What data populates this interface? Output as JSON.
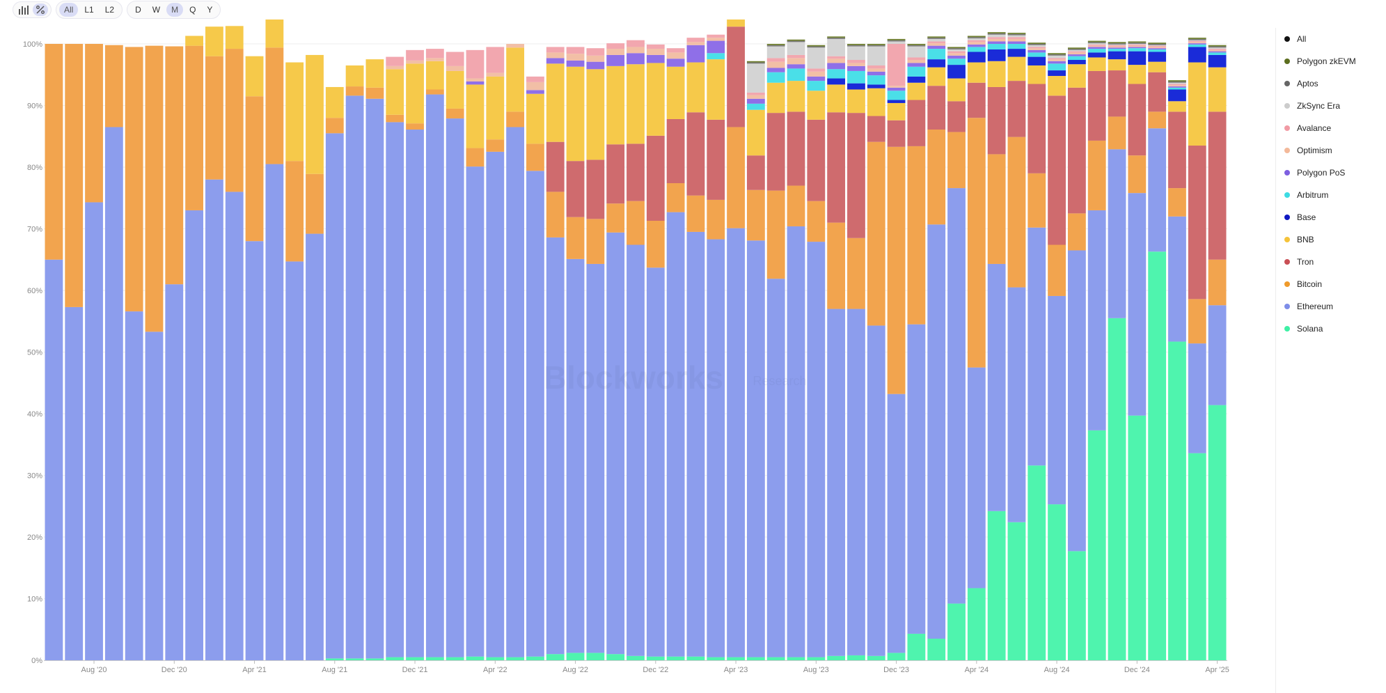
{
  "toolbar": {
    "scope": [
      "All",
      "L1",
      "L2"
    ],
    "scope_active": "All",
    "intervals": [
      "D",
      "W",
      "M",
      "Q",
      "Y"
    ],
    "interval_active": "M"
  },
  "legend": [
    {
      "name": "All",
      "color": "#111111"
    },
    {
      "name": "Polygon zkEVM",
      "color": "#5c6e1f"
    },
    {
      "name": "Aptos",
      "color": "#666666"
    },
    {
      "name": "ZkSync Era",
      "color": "#cccccc"
    },
    {
      "name": "Avalance",
      "color": "#f19aa4"
    },
    {
      "name": "Optimism",
      "color": "#f3b99a"
    },
    {
      "name": "Polygon PoS",
      "color": "#7d5fe0"
    },
    {
      "name": "Arbitrum",
      "color": "#3ddbe3"
    },
    {
      "name": "Base",
      "color": "#0f18c2"
    },
    {
      "name": "BNB",
      "color": "#f5c33a"
    },
    {
      "name": "Tron",
      "color": "#c94f55"
    },
    {
      "name": "Bitcoin",
      "color": "#ef9a2b"
    },
    {
      "name": "Ethereum",
      "color": "#7e8de8"
    },
    {
      "name": "Solana",
      "color": "#3ef0a5"
    }
  ],
  "watermark": {
    "brand": "Blockworks",
    "sub": "Research"
  },
  "chart_data": {
    "type": "bar",
    "stacked": true,
    "normalized": true,
    "interval": "monthly",
    "x": [
      "2020-06",
      "2020-07",
      "2020-08",
      "2020-09",
      "2020-10",
      "2020-11",
      "2020-12",
      "2021-01",
      "2021-02",
      "2021-03",
      "2021-04",
      "2021-05",
      "2021-06",
      "2021-07",
      "2021-08",
      "2021-09",
      "2021-10",
      "2021-11",
      "2021-12",
      "2022-01",
      "2022-02",
      "2022-03",
      "2022-04",
      "2022-05",
      "2022-06",
      "2022-07",
      "2022-08",
      "2022-09",
      "2022-10",
      "2022-11",
      "2022-12",
      "2023-01",
      "2023-02",
      "2023-03",
      "2023-04",
      "2023-05",
      "2023-06",
      "2023-07",
      "2023-08",
      "2023-09",
      "2023-10",
      "2023-11",
      "2023-12",
      "2024-01",
      "2024-02",
      "2024-03",
      "2024-04",
      "2024-05",
      "2024-06",
      "2024-07",
      "2024-08",
      "2024-09",
      "2024-10",
      "2024-11",
      "2024-12",
      "2025-01",
      "2025-02",
      "2025-03",
      "2025-04"
    ],
    "x_tick_labels": [
      "Aug '20",
      "Dec '20",
      "Apr '21",
      "Aug '21",
      "Dec '21",
      "Apr '22",
      "Aug '22",
      "Dec '22",
      "Apr '23",
      "Aug '23",
      "Dec '23",
      "Apr '24",
      "Aug '24",
      "Dec '24",
      "Apr '25"
    ],
    "x_tick_months": [
      "2020-08",
      "2020-12",
      "2021-04",
      "2021-08",
      "2021-12",
      "2022-04",
      "2022-08",
      "2022-12",
      "2023-04",
      "2023-08",
      "2023-12",
      "2024-04",
      "2024-08",
      "2024-12",
      "2025-04"
    ],
    "y_ticks": [
      "0%",
      "10%",
      "20%",
      "30%",
      "40%",
      "50%",
      "60%",
      "70%",
      "80%",
      "90%",
      "100%"
    ],
    "ylim": [
      0,
      100
    ],
    "series": [
      {
        "name": "Solana",
        "color": "#4ff4ae",
        "values": [
          0,
          0,
          0,
          0,
          0,
          0,
          0,
          0,
          0,
          0,
          0,
          0,
          0,
          0,
          0.3,
          0.3,
          0.3,
          0.5,
          0.5,
          0.5,
          0.5,
          0.6,
          0.5,
          0.5,
          0.6,
          1,
          1.2,
          1.2,
          1,
          0.7,
          0.6,
          0.6,
          0.6,
          0.5,
          0.5,
          0.5,
          0.5,
          0.5,
          0.5,
          0.7,
          0.8,
          0.7,
          1.2,
          4.3,
          3.5,
          9.2,
          11.7,
          24.2,
          22.4,
          31.6,
          25.3,
          17.7,
          37.3,
          55.5,
          39.7,
          66.3,
          51.7,
          33.6,
          41.4
        ]
      },
      {
        "name": "Ethereum",
        "color": "#8c9ded",
        "values": [
          65,
          57.3,
          74.3,
          86.5,
          56.6,
          53.3,
          61,
          73,
          78,
          76,
          68,
          80.5,
          64.7,
          69.2,
          85.2,
          91.3,
          90.8,
          86.8,
          85.6,
          91.3,
          87.4,
          79.5,
          82,
          86,
          78.8,
          67.6,
          63.9,
          63.1,
          68.4,
          66.7,
          63.1,
          72.1,
          68.9,
          67.8,
          69.6,
          67.6,
          61.4,
          69.9,
          67.4,
          56.3,
          56.2,
          53.6,
          42,
          50.2,
          67.2,
          67.4,
          35.8,
          40.1,
          38.1,
          38.6,
          33.8,
          48.8,
          35.7,
          27.4,
          36.1,
          20,
          20.3,
          17.8,
          16.2
        ]
      },
      {
        "name": "Bitcoin",
        "color": "#f2a44e",
        "values": [
          35,
          42.7,
          25.7,
          13.3,
          42.9,
          46.4,
          38.6,
          26.7,
          20,
          23.2,
          23.5,
          18.9,
          16.3,
          9.7,
          2.5,
          1.5,
          1.8,
          1.2,
          1,
          0.8,
          1.6,
          3,
          2,
          2.5,
          4.4,
          7.4,
          6.8,
          7.3,
          4.7,
          7.1,
          7.6,
          4.7,
          5.9,
          6.4,
          16.4,
          8.2,
          14.3,
          6.6,
          6.6,
          14,
          11.5,
          29.8,
          40.1,
          28.9,
          15.4,
          9.1,
          40.5,
          17.8,
          24.4,
          8.8,
          8.3,
          6,
          11.3,
          5.3,
          6.1,
          2.7,
          4.6,
          7.2,
          7.4
        ]
      },
      {
        "name": "Tron",
        "color": "#cf6b6e",
        "values": [
          0,
          0,
          0,
          0,
          0,
          0,
          0,
          0,
          0,
          0,
          0,
          0,
          0,
          0,
          0,
          0,
          0,
          0,
          0,
          0,
          0,
          0,
          0,
          0,
          0,
          8.1,
          9.1,
          9.6,
          9.6,
          9.3,
          13.8,
          10.4,
          13.5,
          13,
          16.3,
          5.6,
          12.6,
          12,
          13.2,
          17.9,
          20.3,
          4.2,
          4.3,
          7.5,
          7.1,
          5,
          5.7,
          10.9,
          9.1,
          14.5,
          24.2,
          20.4,
          11.3,
          7.5,
          11.6,
          6.4,
          12.4,
          24.9,
          24
        ]
      },
      {
        "name": "BNB",
        "color": "#f6c94a",
        "values": [
          0,
          0,
          0,
          0,
          0,
          0,
          0,
          1.6,
          4.8,
          3.7,
          6.5,
          9.3,
          16,
          19.3,
          5,
          3.4,
          4.6,
          7.4,
          9.7,
          4.6,
          6.1,
          10.3,
          10.2,
          10.4,
          8.1,
          12.7,
          15.3,
          14.7,
          12.7,
          12.9,
          11.8,
          8.5,
          8.1,
          9.8,
          5,
          7.4,
          4.9,
          5,
          4.7,
          4.5,
          3.8,
          4.5,
          2.8,
          2.8,
          3,
          3.7,
          3.3,
          4.2,
          3.9,
          3,
          3.2,
          3.8,
          2.2,
          1.8,
          3.1,
          1.7,
          1.7,
          13.5,
          7.2
        ]
      },
      {
        "name": "Base",
        "color": "#1a2bd8",
        "values": [
          0,
          0,
          0,
          0,
          0,
          0,
          0,
          0,
          0,
          0,
          0,
          0,
          0,
          0,
          0,
          0,
          0,
          0,
          0,
          0,
          0,
          0,
          0,
          0,
          0,
          0,
          0,
          0,
          0,
          0,
          0,
          0,
          0,
          0,
          0,
          0,
          0,
          0,
          0,
          1,
          1,
          0.6,
          0.5,
          1,
          1.3,
          2.2,
          1.7,
          1.9,
          1.3,
          1.4,
          0.9,
          0.7,
          0.8,
          1.3,
          2.2,
          1.6,
          1.9,
          2.5,
          2
        ]
      },
      {
        "name": "Arbitrum",
        "color": "#4adfe8",
        "values": [
          0,
          0,
          0,
          0,
          0,
          0,
          0,
          0,
          0,
          0,
          0,
          0,
          0,
          0,
          0,
          0,
          0,
          0,
          0,
          0,
          0,
          0,
          0,
          0,
          0,
          0,
          0,
          0,
          0,
          0,
          0,
          0,
          0,
          1,
          2.8,
          1,
          1.7,
          2,
          1.6,
          1.5,
          2,
          1.5,
          1.5,
          1.6,
          1.7,
          1,
          0.8,
          0.9,
          0.8,
          0.7,
          1.1,
          0.6,
          0.6,
          0.4,
          0.5,
          0.4,
          0.3,
          0.4,
          0.4
        ]
      },
      {
        "name": "Polygon PoS",
        "color": "#8f6fe8",
        "values": [
          0,
          0,
          0,
          0,
          0,
          0,
          0,
          0,
          0,
          0,
          0,
          0,
          0,
          0,
          0,
          0,
          0,
          0,
          0,
          0,
          0,
          0.5,
          0,
          0,
          0.6,
          0.9,
          1,
          1.2,
          1.8,
          1.8,
          1.3,
          1.3,
          2.8,
          2,
          1.2,
          0.8,
          0.7,
          0.7,
          0.7,
          1,
          0.8,
          0.6,
          0.5,
          0.6,
          0.5,
          0.5,
          0.4,
          0.4,
          0.4,
          0.4,
          0.4,
          0.3,
          0.3,
          0.2,
          0.2,
          0.2,
          0.2,
          0.2,
          0.2
        ]
      },
      {
        "name": "Optimism",
        "color": "#f2bfa6",
        "values": [
          0,
          0,
          0,
          0,
          0,
          0,
          0,
          0,
          0,
          0,
          0,
          0,
          0,
          0,
          0,
          0,
          0,
          0.5,
          0.5,
          0.5,
          0.8,
          0.5,
          0.6,
          0.6,
          1.3,
          0.9,
          1.1,
          1,
          1,
          1,
          1,
          1,
          0.5,
          0.5,
          0.8,
          0.6,
          1,
          1,
          0.8,
          0.7,
          0.5,
          0.5,
          0.3,
          0.5,
          0.4,
          0.4,
          0.4,
          0.4,
          0.4,
          0.3,
          0.3,
          0.3,
          0.2,
          0.2,
          0.2,
          0.2,
          0.2,
          0.2,
          0.2
        ]
      },
      {
        "name": "Avalance",
        "color": "#f2a7af",
        "values": [
          0,
          0,
          0,
          0,
          0,
          0,
          0,
          0,
          0,
          0,
          0,
          0,
          0,
          0,
          0,
          0,
          0,
          1.5,
          1.7,
          1.5,
          2.3,
          4.6,
          4.2,
          0,
          0.9,
          0.9,
          1.1,
          1.2,
          0.9,
          1.1,
          0.7,
          0.7,
          0.7,
          0.5,
          0.8,
          0.4,
          0.6,
          0.5,
          0.5,
          0.4,
          0.5,
          0.5,
          6.8,
          0.4,
          0.3,
          0.3,
          0.3,
          0.3,
          0.3,
          0.2,
          0.2,
          0.2,
          0.2,
          0.2,
          0.2,
          0.2,
          0.2,
          0.2,
          0.2
        ]
      },
      {
        "name": "ZkSync Era",
        "color": "#d4d4d4",
        "values": [
          0,
          0,
          0,
          0,
          0,
          0,
          0,
          0,
          0,
          0,
          0,
          0,
          0,
          0,
          0,
          0,
          0,
          0,
          0,
          0,
          0,
          0,
          0,
          0,
          0,
          0,
          0,
          0,
          0,
          0,
          0,
          0,
          0,
          0,
          2.5,
          4.7,
          1.9,
          2.1,
          3.4,
          2.8,
          2.2,
          3.1,
          0.4,
          1.8,
          0.4,
          0.3,
          0.3,
          0.4,
          0.3,
          0.3,
          0.4,
          0.2,
          0.2,
          0.1,
          0.1,
          0.1,
          0.2,
          0.1,
          0.2
        ]
      },
      {
        "name": "Aptos",
        "color": "#777777",
        "values": [
          0,
          0,
          0,
          0,
          0,
          0,
          0,
          0,
          0,
          0,
          0,
          0,
          0,
          0,
          0,
          0,
          0,
          0,
          0,
          0,
          0,
          0,
          0,
          0,
          0,
          0,
          0,
          0,
          0,
          0,
          0,
          0,
          0,
          0,
          0.2,
          0.2,
          0.2,
          0.2,
          0.2,
          0.2,
          0.2,
          0.2,
          0.2,
          0.2,
          0.2,
          0.2,
          0.2,
          0.2,
          0.2,
          0.2,
          0.2,
          0.2,
          0.2,
          0.2,
          0.2,
          0.2,
          0.2,
          0.2,
          0.2
        ]
      },
      {
        "name": "Polygon zkEVM",
        "color": "#6f7f2f",
        "values": [
          0,
          0,
          0,
          0,
          0,
          0,
          0,
          0,
          0,
          0,
          0,
          0,
          0,
          0,
          0,
          0,
          0,
          0,
          0,
          0,
          0,
          0,
          0,
          0,
          0,
          0,
          0,
          0,
          0,
          0,
          0,
          0,
          0,
          0,
          0.2,
          0.2,
          0.2,
          0.2,
          0.2,
          0.2,
          0.2,
          0.2,
          0.2,
          0.2,
          0.2,
          0.2,
          0.2,
          0.2,
          0.2,
          0.2,
          0.2,
          0.2,
          0.2,
          0.2,
          0.2,
          0.2,
          0.2,
          0.2,
          0.2
        ]
      }
    ]
  }
}
